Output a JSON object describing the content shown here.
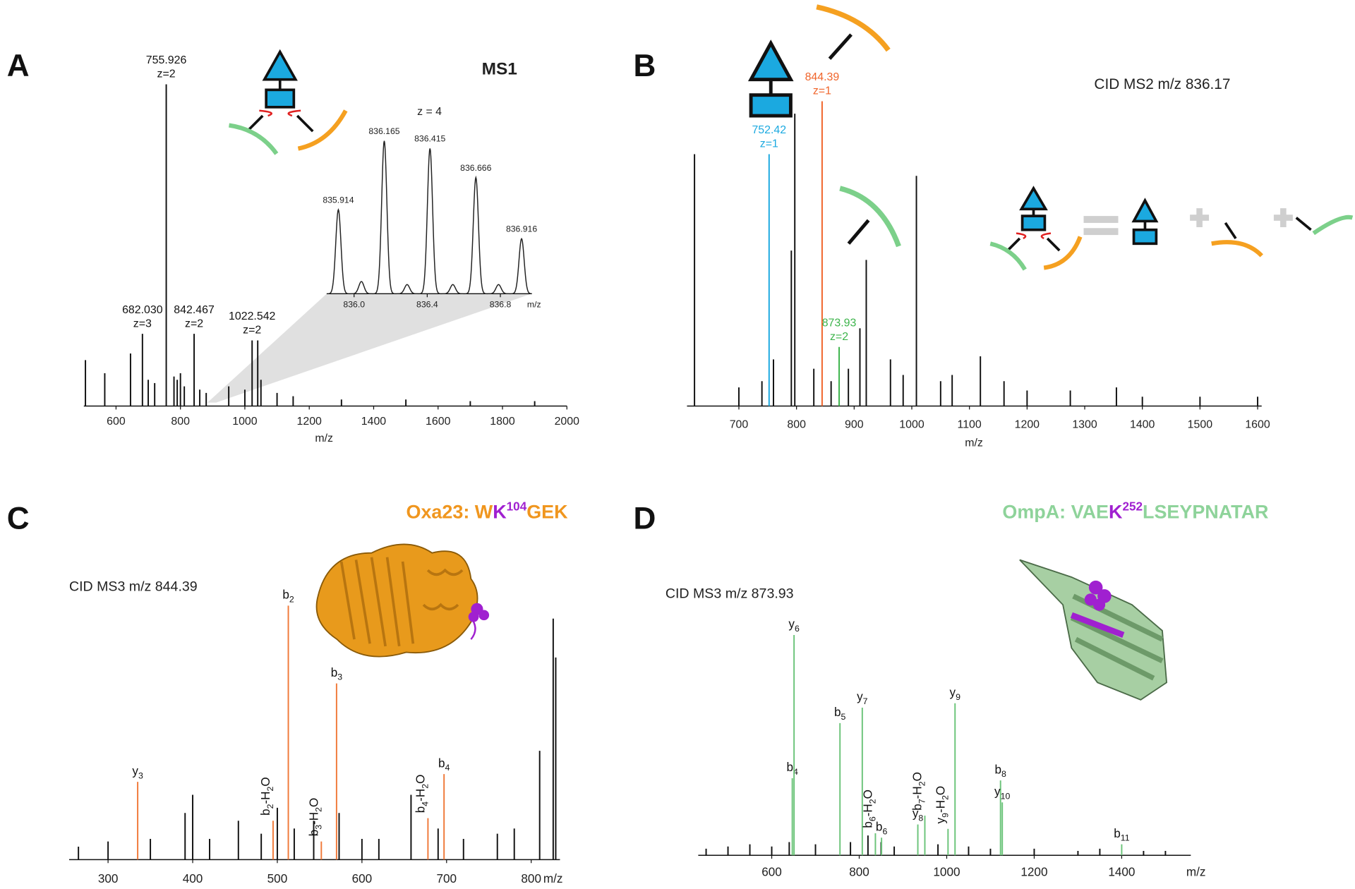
{
  "chart_data": [
    {
      "type": "spectrum",
      "panel": "A",
      "annotation": "MS1",
      "xlabel": "m/z",
      "xlim": [
        500,
        2000
      ],
      "ylim": [
        0,
        100
      ],
      "xticks": [
        600,
        800,
        1000,
        1200,
        1400,
        1600,
        1800,
        2000
      ],
      "series": [
        {
          "color": "#111111",
          "x": [
            505,
            565,
            645,
            682.03,
            700,
            720,
            755.926,
            780,
            790,
            800,
            812,
            842.467,
            860,
            880,
            950,
            1000,
            1022.542,
            1040,
            1050,
            1100,
            1150,
            1300,
            1500,
            1700,
            1900
          ],
          "values": [
            14,
            10,
            16,
            22,
            8,
            7,
            98,
            9,
            8,
            10,
            6,
            22,
            5,
            4,
            6,
            5,
            20,
            20,
            8,
            4,
            3,
            2,
            2,
            1.5,
            1.5
          ],
          "labels": [
            null,
            null,
            null,
            "682.030",
            null,
            null,
            "755.926",
            null,
            null,
            null,
            null,
            "842.467",
            null,
            null,
            null,
            null,
            "1022.542",
            null,
            null,
            null,
            null,
            null,
            null,
            null,
            null
          ],
          "charges": [
            null,
            null,
            null,
            "z=3",
            null,
            null,
            "z=2",
            null,
            null,
            null,
            null,
            "z=2",
            null,
            null,
            null,
            null,
            "z=2",
            null,
            null,
            null,
            null,
            null,
            null,
            null,
            null
          ]
        }
      ]
    },
    {
      "type": "profile",
      "annotation": "z = 4",
      "xlabel": "m/z",
      "xlim": [
        835.85,
        836.97
      ],
      "ylim": [
        0,
        100
      ],
      "xticks": [
        {
          "value": 836.0,
          "label": "836.0"
        },
        836.4,
        836.8
      ],
      "series": [
        {
          "color": "#222222",
          "x": [
            835.914,
            836.04,
            836.165,
            836.29,
            836.415,
            836.54,
            836.666,
            836.79,
            836.916
          ],
          "values": [
            55,
            8,
            100,
            6,
            95,
            6,
            76,
            6,
            36
          ],
          "labels": [
            "835.914",
            null,
            "836.165",
            null,
            "836.415",
            null,
            "836.666",
            null,
            "836.916"
          ]
        }
      ]
    },
    {
      "type": "spectrum",
      "panel": "B",
      "annotation": "CID MS2 m/z 836.17",
      "xlabel": "m/z",
      "xlim": [
        610,
        1607
      ],
      "ylim": [
        0,
        100
      ],
      "xticks": [
        700,
        800,
        900,
        1000,
        1100,
        1200,
        1300,
        1400,
        1500,
        1600
      ],
      "series": [
        {
          "color": "#111111",
          "x": [
            623,
            700,
            740,
            760,
            791,
            797,
            830,
            860,
            890,
            910,
            921,
            963,
            985,
            1008,
            1050,
            1070,
            1119,
            1160,
            1200,
            1275,
            1355,
            1400,
            1500,
            1600
          ],
          "values": [
            81,
            6,
            8,
            15,
            50,
            94,
            12,
            8,
            12,
            25,
            47,
            15,
            10,
            74,
            8,
            10,
            16,
            8,
            5,
            5,
            6,
            3,
            3,
            3
          ]
        },
        {
          "color": "#1ba9e0",
          "x": [
            752.42
          ],
          "values": [
            81
          ],
          "labels": [
            "752.42"
          ],
          "charges": [
            "z=1"
          ]
        },
        {
          "color": "#f0642a",
          "x": [
            844.39
          ],
          "values": [
            98
          ],
          "labels": [
            "844.39"
          ],
          "charges": [
            "z=1"
          ]
        },
        {
          "color": "#3cb44b",
          "x": [
            873.93
          ],
          "values": [
            19
          ],
          "labels": [
            "873.93"
          ],
          "charges": [
            "z=2"
          ]
        }
      ]
    },
    {
      "type": "spectrum",
      "panel": "C",
      "annotation": "CID MS3 m/z 844.39",
      "xlabel": "m/z",
      "title": [
        "Oxa23: W",
        "K",
        "104",
        "GEK"
      ],
      "label_color": "#111111",
      "xlim": [
        254,
        834
      ],
      "ylim": [
        0,
        100
      ],
      "xticks": [
        300,
        400,
        500,
        600,
        700,
        800
      ],
      "series": [
        {
          "color": "#111111",
          "x": [
            265,
            300,
            350,
            391,
            400,
            420,
            454,
            481,
            500,
            520,
            543,
            573,
            600,
            620,
            658,
            690,
            720,
            760,
            780,
            810,
            826,
            829
          ],
          "values": [
            5,
            7,
            8,
            18,
            25,
            8,
            15,
            10,
            20,
            12,
            15,
            18,
            8,
            8,
            25,
            12,
            8,
            10,
            12,
            42,
            93,
            78
          ]
        },
        {
          "color": "#f07a3a",
          "x": [
            335,
            495,
            513,
            552,
            570,
            678,
            697
          ],
          "values": [
            30,
            15,
            98,
            7,
            68,
            16,
            33
          ],
          "labels": [
            "y3",
            "b2-H2O",
            "b2",
            "b3-H2O",
            "b3",
            "b4-H2O",
            "b4"
          ]
        }
      ]
    },
    {
      "type": "spectrum",
      "panel": "D",
      "annotation": "CID MS3 m/z 873.93",
      "xlabel": "m/z",
      "title": [
        "OmpA: VAE",
        "K",
        "252",
        "LSEYPNATAR"
      ],
      "label_color": "#111111",
      "xlim": [
        432,
        1558
      ],
      "ylim": [
        0,
        100
      ],
      "xticks": [
        600,
        800,
        1000,
        1200,
        1400
      ],
      "series": [
        {
          "color": "#111111",
          "x": [
            450,
            500,
            550,
            600,
            640,
            700,
            780,
            820,
            850,
            880,
            980,
            1050,
            1100,
            1200,
            1300,
            1350,
            1450,
            1500
          ],
          "values": [
            3,
            4,
            5,
            4,
            6,
            5,
            6,
            9,
            6,
            4,
            5,
            4,
            3,
            3,
            2,
            3,
            2,
            2
          ]
        },
        {
          "color": "#6cc47a",
          "x": [
            647,
            651,
            756,
            807,
            837,
            851,
            934,
            950,
            1003,
            1019,
            1123,
            1127,
            1400
          ],
          "values": [
            35,
            100,
            60,
            67,
            10,
            8,
            14,
            18,
            12,
            69,
            34,
            24,
            5
          ],
          "labels": [
            "b4",
            "y6",
            "b5",
            "y7",
            "b6-H2O",
            "b6",
            "y8",
            "b7-H2O",
            "y9-H2O",
            "y9",
            "b8",
            "y10",
            "b11"
          ]
        }
      ]
    }
  ]
}
